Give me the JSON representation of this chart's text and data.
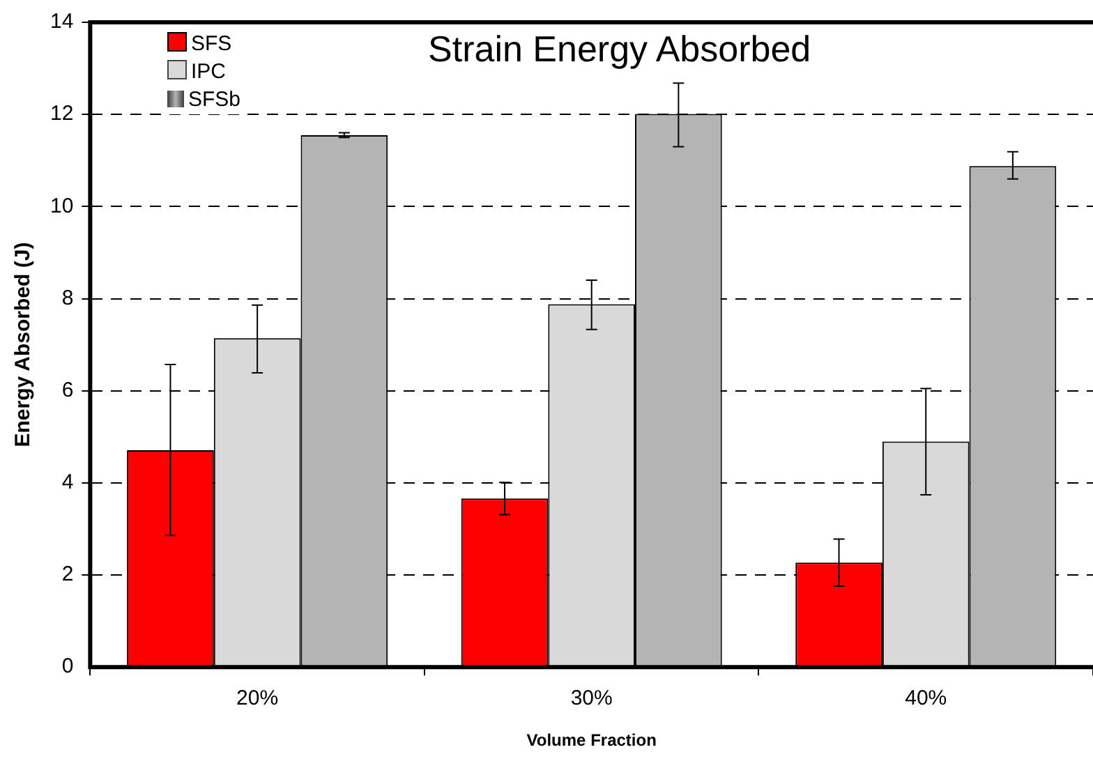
{
  "chart_data": {
    "type": "bar",
    "title": "Strain Energy Absorbed",
    "xlabel": "Volume Fraction",
    "ylabel": "Energy Absorbed (J)",
    "categories": [
      "20%",
      "30%",
      "40%"
    ],
    "series": [
      {
        "name": "SFS",
        "color": "#ff0000",
        "values": [
          4.71,
          3.66,
          2.27
        ],
        "errors": [
          [
            2.86,
            6.57
          ],
          [
            3.31,
            4.01
          ],
          [
            1.76,
            2.78
          ]
        ]
      },
      {
        "name": "IPC",
        "color": "#d9d9d9",
        "values": [
          7.14,
          7.88,
          4.9
        ],
        "errors": [
          [
            6.39,
            7.86
          ],
          [
            7.33,
            8.4
          ],
          [
            3.74,
            6.05
          ]
        ]
      },
      {
        "name": "SFSb",
        "color": "#b4b4b4",
        "values": [
          11.55,
          12.01,
          10.88
        ],
        "errors": [
          [
            11.5,
            11.6
          ],
          [
            11.3,
            12.68
          ],
          [
            10.6,
            11.19
          ]
        ]
      }
    ],
    "ylim": [
      0,
      14
    ],
    "yticks": [
      0,
      2,
      4,
      6,
      8,
      10,
      12,
      14
    ],
    "grid": "y",
    "legend": "top left"
  }
}
